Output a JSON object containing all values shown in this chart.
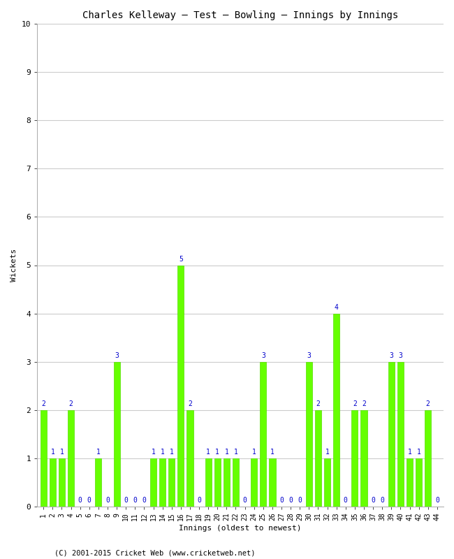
{
  "title": "Charles Kelleway – Test – Bowling – Innings by Innings",
  "xlabel": "Innings (oldest to newest)",
  "ylabel": "Wickets",
  "ylim": [
    0,
    10
  ],
  "yticks": [
    0,
    1,
    2,
    3,
    4,
    5,
    6,
    7,
    8,
    9,
    10
  ],
  "bar_color": "#66ff00",
  "bar_edge_color": "#55dd00",
  "background_color": "#ffffff",
  "grid_color": "#cccccc",
  "label_color": "#0000cc",
  "copyright": "(C) 2001-2015 Cricket Web (www.cricketweb.net)",
  "innings": [
    1,
    2,
    3,
    4,
    5,
    6,
    7,
    8,
    9,
    10,
    11,
    12,
    13,
    14,
    15,
    16,
    17,
    18,
    19,
    20,
    21,
    22,
    23,
    24,
    25,
    26,
    27,
    28,
    29,
    30,
    31,
    32,
    33,
    34,
    35,
    36,
    37,
    38,
    39,
    40,
    41,
    42,
    43,
    44
  ],
  "wickets": [
    2,
    1,
    1,
    2,
    0,
    0,
    1,
    0,
    3,
    0,
    0,
    0,
    1,
    1,
    1,
    5,
    2,
    0,
    1,
    1,
    1,
    1,
    0,
    1,
    3,
    1,
    0,
    0,
    0,
    3,
    2,
    1,
    4,
    0,
    2,
    2,
    0,
    0,
    3,
    3,
    1,
    1,
    2,
    0
  ]
}
